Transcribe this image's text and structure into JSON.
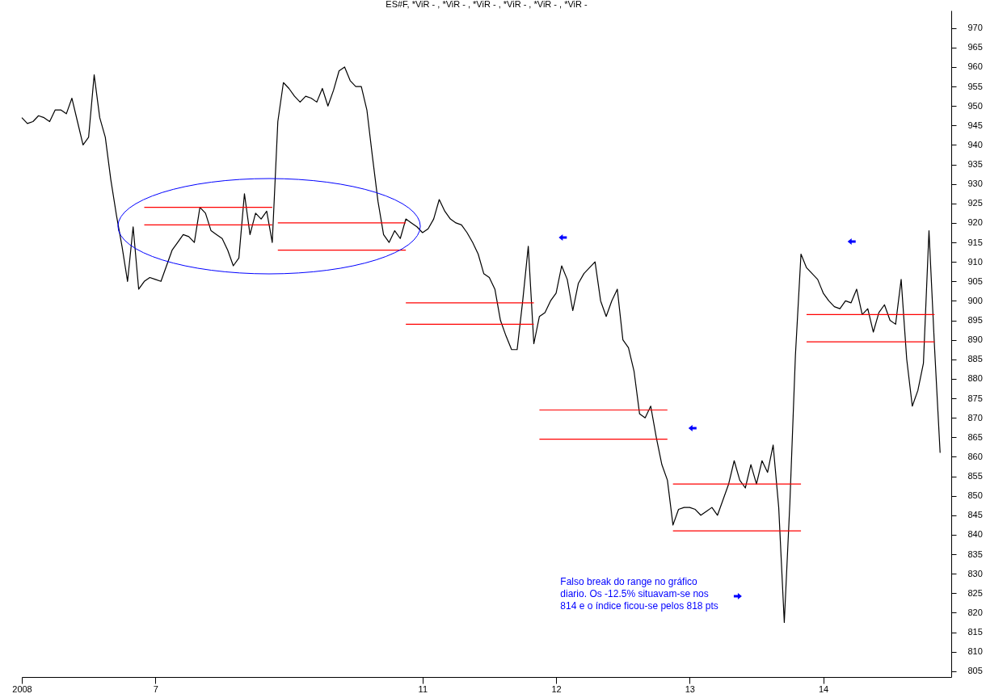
{
  "chart_data": {
    "type": "line",
    "title": "ES#F, *ViR - , *ViR - , *ViR - , *ViR - , *ViR - , *ViR -",
    "categories": [
      "2008",
      null,
      null,
      null,
      null,
      null,
      null,
      null,
      null,
      null,
      null,
      null,
      null,
      null,
      null,
      null,
      null,
      null,
      null,
      null,
      null,
      null,
      null,
      null,
      "7",
      null,
      null,
      null,
      null,
      null,
      null,
      null,
      null,
      null,
      null,
      null,
      null,
      null,
      null,
      null,
      null,
      null,
      null,
      null,
      null,
      null,
      null,
      null,
      null,
      null,
      null,
      null,
      null,
      null,
      null,
      null,
      null,
      null,
      null,
      null,
      null,
      null,
      null,
      null,
      null,
      null,
      null,
      null,
      null,
      null,
      null,
      null,
      "11",
      null,
      null,
      null,
      null,
      null,
      null,
      null,
      null,
      null,
      null,
      null,
      null,
      null,
      null,
      null,
      null,
      null,
      null,
      null,
      null,
      null,
      null,
      null,
      "12",
      null,
      null,
      null,
      null,
      null,
      null,
      null,
      null,
      null,
      null,
      null,
      null,
      null,
      null,
      null,
      null,
      null,
      null,
      null,
      null,
      null,
      null,
      null,
      "13",
      null,
      null,
      null,
      null,
      null,
      null,
      null,
      null,
      null,
      null,
      null,
      null,
      null,
      null,
      null,
      null,
      null,
      null,
      null,
      null,
      null,
      null,
      null,
      "14",
      null,
      null,
      null,
      null,
      null,
      null,
      null,
      null,
      null,
      null,
      null,
      null,
      null,
      null,
      null,
      null,
      null,
      null,
      null,
      null,
      null,
      null,
      null
    ],
    "ylim": [
      803.5,
      974.5
    ],
    "yticks": [
      805,
      810,
      815,
      820,
      825,
      830,
      835,
      840,
      845,
      850,
      855,
      860,
      865,
      870,
      875,
      880,
      885,
      890,
      895,
      900,
      905,
      910,
      915,
      920,
      925,
      930,
      935,
      940,
      945,
      950,
      955,
      960,
      965,
      970
    ],
    "series": [
      {
        "color": "#000000",
        "values": [
          947,
          945.5,
          946,
          947.5,
          947,
          946,
          949,
          949,
          948,
          952,
          946,
          940,
          942,
          958,
          947,
          942,
          931,
          922,
          914,
          905,
          919,
          903,
          905,
          906,
          905.5,
          905,
          909,
          913,
          915,
          917,
          916.5,
          915,
          924,
          922.5,
          918,
          917,
          916,
          913,
          909,
          911,
          927.5,
          917,
          922.5,
          921,
          923,
          915,
          946,
          956,
          954.5,
          952.5,
          951,
          952.5,
          952,
          951,
          954.5,
          950,
          954,
          959,
          960,
          956.5,
          955,
          955,
          949,
          937,
          925.5,
          917,
          915,
          918,
          916,
          921,
          920,
          919,
          917.5,
          918.5,
          921,
          926,
          923,
          921,
          920,
          919.5,
          917.5,
          915,
          912,
          907,
          906,
          903,
          895,
          891,
          887.5,
          887.5,
          900,
          914,
          889,
          896,
          897,
          900,
          902,
          909,
          905.5,
          897.5,
          904.5,
          907,
          908.5,
          910,
          900,
          896,
          900,
          903,
          890,
          888,
          882,
          871,
          870,
          873,
          865,
          858,
          854,
          842.5,
          846.5,
          847,
          847,
          846.5,
          845,
          846,
          847,
          845,
          849,
          853,
          859,
          854,
          852,
          858,
          853,
          859,
          856,
          863,
          847,
          817.5,
          848,
          886,
          912,
          908.5,
          907,
          905.5,
          902,
          900,
          898.5,
          898,
          900,
          899.5,
          903,
          896.5,
          898,
          892,
          897,
          899,
          895,
          894,
          905.5,
          885,
          873,
          877,
          884,
          918,
          888,
          861,
          null,
          null
        ]
      },
      {
        "color": "#ff0000",
        "values": [
          null,
          null,
          null,
          null,
          null,
          null,
          null,
          null,
          null,
          null,
          null,
          null,
          null,
          null,
          null,
          null,
          null,
          null,
          null,
          null,
          null,
          null,
          924,
          924,
          924,
          924,
          924,
          924,
          924,
          924,
          924,
          924,
          924,
          924,
          924,
          924,
          924,
          924,
          924,
          924,
          924,
          924,
          924,
          924,
          924,
          924,
          null,
          null,
          null,
          null,
          null,
          null,
          null,
          null,
          null,
          null,
          null,
          null,
          null,
          null,
          null,
          null,
          null,
          null,
          null,
          null,
          null,
          null,
          null,
          null,
          null,
          null,
          null,
          null,
          null,
          null,
          null,
          null,
          null,
          null,
          null,
          null,
          null,
          null,
          null,
          null,
          null,
          null,
          null,
          null,
          null,
          null,
          null,
          null,
          null,
          null,
          null,
          null,
          null,
          null,
          null,
          null,
          null,
          null,
          null,
          null,
          null,
          null,
          null,
          null,
          null,
          null,
          null,
          null,
          null,
          null,
          null,
          null,
          null,
          null,
          null,
          null,
          null,
          null,
          null,
          null,
          null,
          null,
          null,
          null,
          null,
          null,
          null,
          null,
          null,
          null,
          null,
          null,
          null,
          null,
          null,
          null,
          null,
          null,
          null,
          null,
          null,
          null,
          null,
          null,
          null,
          null,
          null,
          null,
          null,
          null,
          null,
          null,
          null,
          null,
          null,
          null,
          null,
          null,
          null,
          null,
          null,
          null
        ]
      },
      {
        "color": "#ff0000",
        "values": [
          null,
          null,
          null,
          null,
          null,
          null,
          null,
          null,
          null,
          null,
          null,
          null,
          null,
          null,
          null,
          null,
          null,
          null,
          null,
          null,
          null,
          null,
          919.5,
          919.5,
          919.5,
          919.5,
          919.5,
          919.5,
          919.5,
          919.5,
          919.5,
          919.5,
          919.5,
          919.5,
          919.5,
          919.5,
          919.5,
          919.5,
          919.5,
          919.5,
          919.5,
          919.5,
          919.5,
          919.5,
          919.5,
          919.5,
          null,
          null,
          null,
          null,
          null,
          null,
          null,
          null,
          null,
          null,
          null,
          null,
          null,
          null,
          null,
          null,
          null,
          null,
          null,
          null,
          null,
          null,
          null,
          null,
          null,
          null,
          null,
          null,
          null,
          null,
          null,
          null,
          null,
          null,
          null,
          null,
          null,
          null,
          null,
          null,
          null,
          null,
          null,
          null,
          null,
          null,
          null,
          null,
          null,
          null,
          null,
          null,
          null,
          null,
          null,
          null,
          null,
          null,
          null,
          null,
          null,
          null,
          null,
          null,
          null,
          null,
          null,
          null,
          null,
          null,
          null,
          null,
          null,
          null,
          null,
          null,
          null,
          null,
          null,
          null,
          null,
          null,
          null,
          null,
          null,
          null,
          null,
          null,
          null,
          null,
          null,
          null,
          null,
          null,
          null,
          null,
          null,
          null,
          null,
          null,
          null,
          null,
          null,
          null,
          null,
          null,
          null,
          null,
          null,
          null,
          null,
          null,
          null,
          null,
          null,
          null,
          null,
          null,
          null,
          null,
          null,
          null
        ]
      },
      {
        "color": "#ff0000",
        "values": [
          null,
          null,
          null,
          null,
          null,
          null,
          null,
          null,
          null,
          null,
          null,
          null,
          null,
          null,
          null,
          null,
          null,
          null,
          null,
          null,
          null,
          null,
          null,
          null,
          null,
          null,
          null,
          null,
          null,
          null,
          null,
          null,
          null,
          null,
          null,
          null,
          null,
          null,
          null,
          null,
          null,
          null,
          null,
          null,
          null,
          null,
          920,
          920,
          920,
          920,
          920,
          920,
          920,
          920,
          920,
          920,
          920,
          920,
          920,
          920,
          920,
          920,
          920,
          920,
          920,
          920,
          920,
          920,
          920,
          920,
          null,
          null,
          null,
          null,
          null,
          null,
          null,
          null,
          null,
          null,
          null,
          null,
          null,
          null,
          null,
          null,
          null,
          null,
          null,
          null,
          null,
          null,
          null,
          null,
          null,
          null,
          null,
          null,
          null,
          null,
          null,
          null,
          null,
          null,
          null,
          null,
          null,
          null,
          null,
          null,
          null,
          null,
          null,
          null,
          null,
          null,
          null,
          null,
          null,
          null,
          null,
          null,
          null,
          null,
          null,
          null,
          null,
          null,
          null,
          null,
          null,
          null,
          null,
          null,
          null,
          null,
          null,
          null,
          null,
          null,
          null,
          null,
          null,
          null,
          null,
          null,
          null,
          null,
          null,
          null,
          null,
          null,
          null,
          null,
          null,
          null,
          null,
          null,
          null,
          null,
          null,
          null,
          null,
          null,
          null,
          null,
          null,
          null
        ]
      },
      {
        "color": "#ff0000",
        "values": [
          null,
          null,
          null,
          null,
          null,
          null,
          null,
          null,
          null,
          null,
          null,
          null,
          null,
          null,
          null,
          null,
          null,
          null,
          null,
          null,
          null,
          null,
          null,
          null,
          null,
          null,
          null,
          null,
          null,
          null,
          null,
          null,
          null,
          null,
          null,
          null,
          null,
          null,
          null,
          null,
          null,
          null,
          null,
          null,
          null,
          null,
          913,
          913,
          913,
          913,
          913,
          913,
          913,
          913,
          913,
          913,
          913,
          913,
          913,
          913,
          913,
          913,
          913,
          913,
          913,
          913,
          913,
          913,
          913,
          913,
          null,
          null,
          null,
          null,
          null,
          null,
          null,
          null,
          null,
          null,
          null,
          null,
          null,
          null,
          null,
          null,
          null,
          null,
          null,
          null,
          null,
          null,
          null,
          null,
          null,
          null,
          null,
          null,
          null,
          null,
          null,
          null,
          null,
          null,
          null,
          null,
          null,
          null,
          null,
          null,
          null,
          null,
          null,
          null,
          null,
          null,
          null,
          null,
          null,
          null,
          null,
          null,
          null,
          null,
          null,
          null,
          null,
          null,
          null,
          null,
          null,
          null,
          null,
          null,
          null,
          null,
          null,
          null,
          null,
          null,
          null,
          null,
          null,
          null,
          null,
          null,
          null,
          null,
          null,
          null,
          null,
          null,
          null,
          null,
          null,
          null,
          null,
          null,
          null,
          null,
          null,
          null,
          null,
          null,
          null,
          null,
          null,
          null
        ]
      },
      {
        "color": "#ff0000",
        "values": [
          null,
          null,
          null,
          null,
          null,
          null,
          null,
          null,
          null,
          null,
          null,
          null,
          null,
          null,
          null,
          null,
          null,
          null,
          null,
          null,
          null,
          null,
          null,
          null,
          null,
          null,
          null,
          null,
          null,
          null,
          null,
          null,
          null,
          null,
          null,
          null,
          null,
          null,
          null,
          null,
          null,
          null,
          null,
          null,
          null,
          null,
          null,
          null,
          null,
          null,
          null,
          null,
          null,
          null,
          null,
          null,
          null,
          null,
          null,
          null,
          null,
          null,
          null,
          null,
          null,
          null,
          null,
          null,
          null,
          899.5,
          899.5,
          899.5,
          899.5,
          899.5,
          899.5,
          899.5,
          899.5,
          899.5,
          899.5,
          899.5,
          899.5,
          899.5,
          899.5,
          899.5,
          899.5,
          899.5,
          899.5,
          899.5,
          899.5,
          899.5,
          899.5,
          899.5,
          899.5,
          null,
          null,
          null,
          null,
          null,
          null,
          null,
          null,
          null,
          null,
          null,
          null,
          null,
          null,
          null,
          null,
          null,
          null,
          null,
          null,
          null,
          null,
          null,
          null,
          null,
          null,
          null,
          null,
          null,
          null,
          null,
          null,
          null,
          null,
          null,
          null,
          null,
          null,
          null,
          null,
          null,
          null,
          null,
          null,
          null,
          null,
          null,
          null,
          null,
          null,
          null,
          null,
          null,
          null,
          null,
          null,
          null,
          null,
          null,
          null,
          null,
          null,
          null,
          null,
          null,
          null,
          null,
          null,
          null,
          null,
          null,
          null,
          null,
          null,
          null
        ]
      },
      {
        "color": "#ff0000",
        "values": [
          null,
          null,
          null,
          null,
          null,
          null,
          null,
          null,
          null,
          null,
          null,
          null,
          null,
          null,
          null,
          null,
          null,
          null,
          null,
          null,
          null,
          null,
          null,
          null,
          null,
          null,
          null,
          null,
          null,
          null,
          null,
          null,
          null,
          null,
          null,
          null,
          null,
          null,
          null,
          null,
          null,
          null,
          null,
          null,
          null,
          null,
          null,
          null,
          null,
          null,
          null,
          null,
          null,
          null,
          null,
          null,
          null,
          null,
          null,
          null,
          null,
          null,
          null,
          null,
          null,
          null,
          null,
          null,
          null,
          894,
          894,
          894,
          894,
          894,
          894,
          894,
          894,
          894,
          894,
          894,
          894,
          894,
          894,
          894,
          894,
          894,
          894,
          894,
          894,
          894,
          894,
          894,
          894,
          null,
          null,
          null,
          null,
          null,
          null,
          null,
          null,
          null,
          null,
          null,
          null,
          null,
          null,
          null,
          null,
          null,
          null,
          null,
          null,
          null,
          null,
          null,
          null,
          null,
          null,
          null,
          null,
          null,
          null,
          null,
          null,
          null,
          null,
          null,
          null,
          null,
          null,
          null,
          null,
          null,
          null,
          null,
          null,
          null,
          null,
          null,
          null,
          null,
          null,
          null,
          null,
          null,
          null,
          null,
          null,
          null,
          null,
          null,
          null,
          null,
          null,
          null,
          null,
          null,
          null,
          null,
          null,
          null,
          null,
          null,
          null,
          null,
          null,
          null
        ]
      },
      {
        "color": "#ff0000",
        "values": [
          null,
          null,
          null,
          null,
          null,
          null,
          null,
          null,
          null,
          null,
          null,
          null,
          null,
          null,
          null,
          null,
          null,
          null,
          null,
          null,
          null,
          null,
          null,
          null,
          null,
          null,
          null,
          null,
          null,
          null,
          null,
          null,
          null,
          null,
          null,
          null,
          null,
          null,
          null,
          null,
          null,
          null,
          null,
          null,
          null,
          null,
          null,
          null,
          null,
          null,
          null,
          null,
          null,
          null,
          null,
          null,
          null,
          null,
          null,
          null,
          null,
          null,
          null,
          null,
          null,
          null,
          null,
          null,
          null,
          null,
          null,
          null,
          null,
          null,
          null,
          null,
          null,
          null,
          null,
          null,
          null,
          null,
          null,
          null,
          null,
          null,
          null,
          null,
          null,
          null,
          null,
          null,
          null,
          872,
          872,
          872,
          872,
          872,
          872,
          872,
          872,
          872,
          872,
          872,
          872,
          872,
          872,
          872,
          872,
          872,
          872,
          872,
          872,
          872,
          872,
          872,
          872,
          null,
          null,
          null,
          null,
          null,
          null,
          null,
          null,
          null,
          null,
          null,
          null,
          null,
          null,
          null,
          null,
          null,
          null,
          null,
          null,
          null,
          null,
          null,
          null,
          null,
          null,
          null,
          null,
          null,
          null,
          null,
          null,
          null,
          null,
          null,
          null,
          null,
          null,
          null,
          null,
          null,
          null,
          null,
          null,
          null,
          null,
          null,
          null,
          null,
          null,
          null
        ]
      },
      {
        "color": "#ff0000",
        "values": [
          null,
          null,
          null,
          null,
          null,
          null,
          null,
          null,
          null,
          null,
          null,
          null,
          null,
          null,
          null,
          null,
          null,
          null,
          null,
          null,
          null,
          null,
          null,
          null,
          null,
          null,
          null,
          null,
          null,
          null,
          null,
          null,
          null,
          null,
          null,
          null,
          null,
          null,
          null,
          null,
          null,
          null,
          null,
          null,
          null,
          null,
          null,
          null,
          null,
          null,
          null,
          null,
          null,
          null,
          null,
          null,
          null,
          null,
          null,
          null,
          null,
          null,
          null,
          null,
          null,
          null,
          null,
          null,
          null,
          null,
          null,
          null,
          null,
          null,
          null,
          null,
          null,
          null,
          null,
          null,
          null,
          null,
          null,
          null,
          null,
          null,
          null,
          null,
          null,
          null,
          null,
          null,
          null,
          864.5,
          864.5,
          864.5,
          864.5,
          864.5,
          864.5,
          864.5,
          864.5,
          864.5,
          864.5,
          864.5,
          864.5,
          864.5,
          864.5,
          864.5,
          864.5,
          864.5,
          864.5,
          864.5,
          864.5,
          864.5,
          864.5,
          864.5,
          864.5,
          null,
          null,
          null,
          null,
          null,
          null,
          null,
          null,
          null,
          null,
          null,
          null,
          null,
          null,
          null,
          null,
          null,
          null,
          null,
          null,
          null,
          null,
          null,
          null,
          null,
          null,
          null,
          null,
          null,
          null,
          null,
          null,
          null,
          null,
          null,
          null,
          null,
          null,
          null,
          null,
          null,
          null,
          null,
          null,
          null,
          null,
          null,
          null,
          null,
          null,
          null
        ]
      },
      {
        "color": "#ff0000",
        "values": [
          null,
          null,
          null,
          null,
          null,
          null,
          null,
          null,
          null,
          null,
          null,
          null,
          null,
          null,
          null,
          null,
          null,
          null,
          null,
          null,
          null,
          null,
          null,
          null,
          null,
          null,
          null,
          null,
          null,
          null,
          null,
          null,
          null,
          null,
          null,
          null,
          null,
          null,
          null,
          null,
          null,
          null,
          null,
          null,
          null,
          null,
          null,
          null,
          null,
          null,
          null,
          null,
          null,
          null,
          null,
          null,
          null,
          null,
          null,
          null,
          null,
          null,
          null,
          null,
          null,
          null,
          null,
          null,
          null,
          null,
          null,
          null,
          null,
          null,
          null,
          null,
          null,
          null,
          null,
          null,
          null,
          null,
          null,
          null,
          null,
          null,
          null,
          null,
          null,
          null,
          null,
          null,
          null,
          null,
          null,
          null,
          null,
          null,
          null,
          null,
          null,
          null,
          null,
          null,
          null,
          null,
          null,
          null,
          null,
          null,
          null,
          null,
          null,
          null,
          null,
          null,
          null,
          853,
          853,
          853,
          853,
          853,
          853,
          853,
          853,
          853,
          853,
          853,
          853,
          853,
          853,
          853,
          853,
          853,
          853,
          853,
          853,
          853,
          853,
          853,
          853,
          null,
          null,
          null,
          null,
          null,
          null,
          null,
          null,
          null,
          null,
          null,
          null,
          null,
          null,
          null,
          null,
          null,
          null,
          null,
          null,
          null,
          null,
          null,
          null,
          null,
          null,
          null
        ]
      },
      {
        "color": "#ff0000",
        "values": [
          null,
          null,
          null,
          null,
          null,
          null,
          null,
          null,
          null,
          null,
          null,
          null,
          null,
          null,
          null,
          null,
          null,
          null,
          null,
          null,
          null,
          null,
          null,
          null,
          null,
          null,
          null,
          null,
          null,
          null,
          null,
          null,
          null,
          null,
          null,
          null,
          null,
          null,
          null,
          null,
          null,
          null,
          null,
          null,
          null,
          null,
          null,
          null,
          null,
          null,
          null,
          null,
          null,
          null,
          null,
          null,
          null,
          null,
          null,
          null,
          null,
          null,
          null,
          null,
          null,
          null,
          null,
          null,
          null,
          null,
          null,
          null,
          null,
          null,
          null,
          null,
          null,
          null,
          null,
          null,
          null,
          null,
          null,
          null,
          null,
          null,
          null,
          null,
          null,
          null,
          null,
          null,
          null,
          null,
          null,
          null,
          null,
          null,
          null,
          null,
          null,
          null,
          null,
          null,
          null,
          null,
          null,
          null,
          null,
          null,
          null,
          null,
          null,
          null,
          null,
          null,
          null,
          841,
          841,
          841,
          841,
          841,
          841,
          841,
          841,
          841,
          841,
          841,
          841,
          841,
          841,
          841,
          841,
          841,
          841,
          841,
          841,
          841,
          841,
          841,
          841,
          null,
          null,
          null,
          null,
          null,
          null,
          null,
          null,
          null,
          null,
          null,
          null,
          null,
          null,
          null,
          null,
          null,
          null,
          null,
          null,
          null,
          null,
          null,
          null,
          null,
          null,
          null
        ]
      },
      {
        "color": "#ff0000",
        "values": [
          null,
          null,
          null,
          null,
          null,
          null,
          null,
          null,
          null,
          null,
          null,
          null,
          null,
          null,
          null,
          null,
          null,
          null,
          null,
          null,
          null,
          null,
          null,
          null,
          null,
          null,
          null,
          null,
          null,
          null,
          null,
          null,
          null,
          null,
          null,
          null,
          null,
          null,
          null,
          null,
          null,
          null,
          null,
          null,
          null,
          null,
          null,
          null,
          null,
          null,
          null,
          null,
          null,
          null,
          null,
          null,
          null,
          null,
          null,
          null,
          null,
          null,
          null,
          null,
          null,
          null,
          null,
          null,
          null,
          null,
          null,
          null,
          null,
          null,
          null,
          null,
          null,
          null,
          null,
          null,
          null,
          null,
          null,
          null,
          null,
          null,
          null,
          null,
          null,
          null,
          null,
          null,
          null,
          null,
          null,
          null,
          null,
          null,
          null,
          null,
          null,
          null,
          null,
          null,
          null,
          null,
          null,
          null,
          null,
          null,
          null,
          null,
          null,
          null,
          null,
          null,
          null,
          null,
          null,
          null,
          null,
          null,
          null,
          null,
          null,
          null,
          null,
          null,
          null,
          null,
          null,
          null,
          null,
          null,
          null,
          null,
          null,
          null,
          null,
          null,
          null,
          896.5,
          896.5,
          896.5,
          896.5,
          896.5,
          896.5,
          896.5,
          896.5,
          896.5,
          896.5,
          896.5,
          896.5,
          896.5,
          896.5,
          896.5,
          896.5,
          896.5,
          896.5,
          896.5,
          896.5,
          896.5,
          896.5,
          896.5,
          896.5,
          null,
          null,
          null
        ]
      },
      {
        "color": "#ff0000",
        "values": [
          null,
          null,
          null,
          null,
          null,
          null,
          null,
          null,
          null,
          null,
          null,
          null,
          null,
          null,
          null,
          null,
          null,
          null,
          null,
          null,
          null,
          null,
          null,
          null,
          null,
          null,
          null,
          null,
          null,
          null,
          null,
          null,
          null,
          null,
          null,
          null,
          null,
          null,
          null,
          null,
          null,
          null,
          null,
          null,
          null,
          null,
          null,
          null,
          null,
          null,
          null,
          null,
          null,
          null,
          null,
          null,
          null,
          null,
          null,
          null,
          null,
          null,
          null,
          null,
          null,
          null,
          null,
          null,
          null,
          null,
          null,
          null,
          null,
          null,
          null,
          null,
          null,
          null,
          null,
          null,
          null,
          null,
          null,
          null,
          null,
          null,
          null,
          null,
          null,
          null,
          null,
          null,
          null,
          null,
          null,
          null,
          null,
          null,
          null,
          null,
          null,
          null,
          null,
          null,
          null,
          null,
          null,
          null,
          null,
          null,
          null,
          null,
          null,
          null,
          null,
          null,
          null,
          null,
          null,
          null,
          null,
          null,
          null,
          null,
          null,
          null,
          null,
          null,
          null,
          null,
          null,
          null,
          null,
          null,
          null,
          null,
          null,
          null,
          null,
          null,
          null,
          889.5,
          889.5,
          889.5,
          889.5,
          889.5,
          889.5,
          889.5,
          889.5,
          889.5,
          889.5,
          889.5,
          889.5,
          889.5,
          889.5,
          889.5,
          889.5,
          889.5,
          889.5,
          889.5,
          889.5,
          889.5,
          889.5,
          889.5,
          889.5,
          null,
          null,
          null
        ]
      }
    ],
    "annotations": [
      "Falso break do range no gráfico diario. Os -12.5% situavam-se nos 814 e o índice ficou-se pelos 818 pts"
    ]
  }
}
